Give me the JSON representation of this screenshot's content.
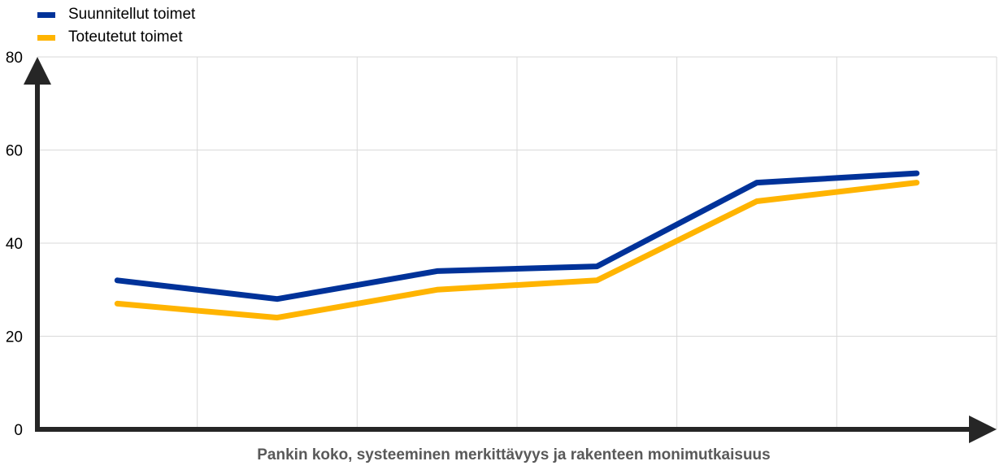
{
  "chart_data": {
    "type": "line",
    "title": "",
    "xlabel": "Pankin koko, systeeminen merkittävyys ja rakenteen monimutkaisuus",
    "ylabel": "",
    "ylim": [
      0,
      80
    ],
    "yticks": [
      "0",
      "20",
      "40",
      "60",
      "80"
    ],
    "x": [
      1,
      2,
      3,
      4,
      5,
      6
    ],
    "grid": true,
    "legend_position": "top-left",
    "series": [
      {
        "name": "Suunnitellut toimet",
        "color": "#003299",
        "values": [
          32,
          28,
          34,
          35,
          53,
          55
        ]
      },
      {
        "name": "Toteutetut toimet",
        "color": "#FFB400",
        "values": [
          27,
          24,
          30,
          32,
          49,
          53
        ]
      }
    ]
  }
}
